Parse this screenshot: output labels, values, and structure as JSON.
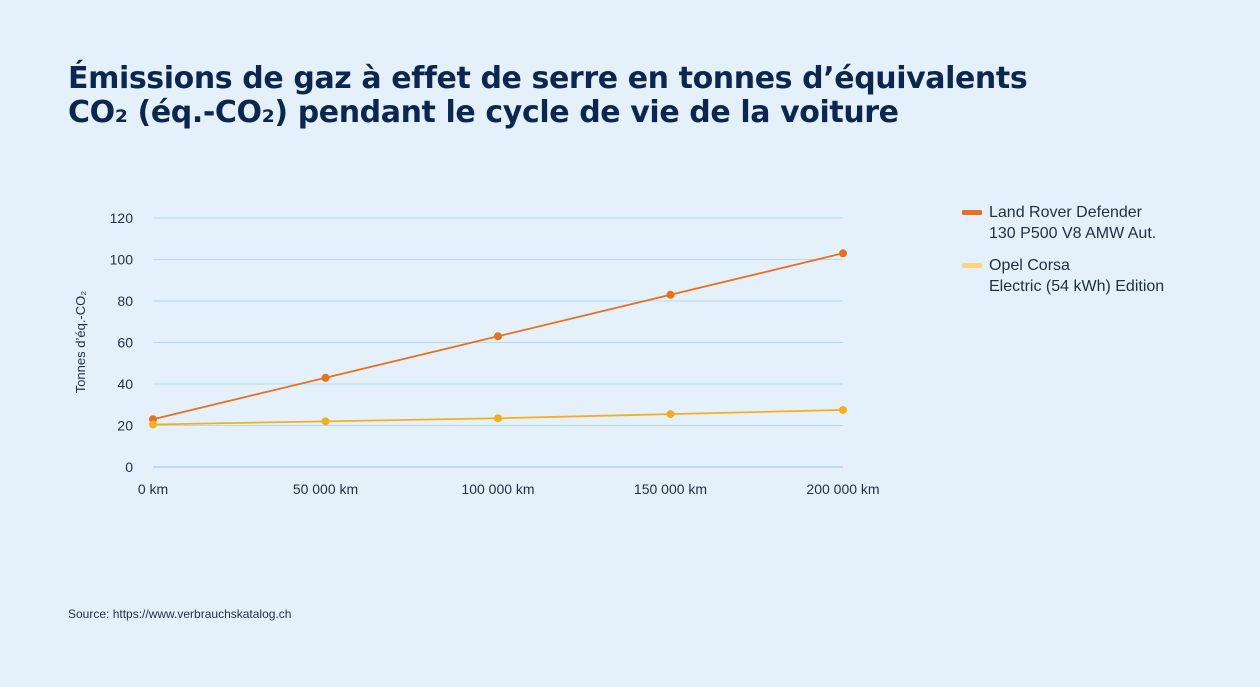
{
  "title": {
    "line1": "Émissions de gaz à effet de serre en tonnes d’équivalents",
    "line2": "CO₂ (éq.-CO₂) pendant le cycle de vie de la voiture"
  },
  "source": "Source: https://www.verbrauchskatalog.ch",
  "chart_data": {
    "type": "line",
    "ylabel": "Tonnes d’éq.-CO₂",
    "xlabel": "",
    "x": [
      0,
      50000,
      100000,
      150000,
      200000
    ],
    "categories": [
      "0 km",
      "50 000 km",
      "100 000 km",
      "150 000 km",
      "200 000 km"
    ],
    "ylim": [
      0,
      120
    ],
    "yticks": [
      0,
      20,
      40,
      60,
      80,
      100,
      120
    ],
    "grid": true,
    "legend_position": "right",
    "series": [
      {
        "name": "Land Rover Defender\n130 P500 V8 AMW Aut.",
        "color": "#e8701e",
        "legend_color": "#e8701e",
        "values": [
          23,
          43,
          63,
          83,
          103
        ]
      },
      {
        "name": "Opel Corsa\nElectric (54 kWh) Edition",
        "color": "#f7ae1a",
        "legend_color": "#fad57e",
        "values": [
          20.5,
          22,
          23.5,
          25.5,
          27.5
        ]
      }
    ]
  }
}
